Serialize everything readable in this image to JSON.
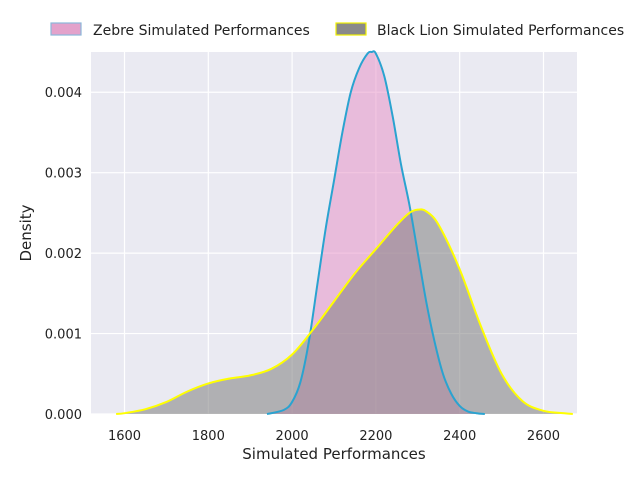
{
  "chart_data": {
    "type": "area",
    "title": "",
    "xlabel": "Simulated Performances",
    "ylabel": "Density",
    "xlim": [
      1520,
      2680
    ],
    "ylim": [
      0,
      0.0045
    ],
    "x_ticks": [
      1600,
      1800,
      2000,
      2200,
      2400,
      2600
    ],
    "x_tick_labels": [
      "1600",
      "1800",
      "2000",
      "2200",
      "2400",
      "2600"
    ],
    "y_ticks": [
      0,
      0.001,
      0.002,
      0.003,
      0.004
    ],
    "y_tick_labels": [
      "0.000",
      "0.001",
      "0.002",
      "0.003",
      "0.004"
    ],
    "grid": true,
    "legend_position": "top, above plot",
    "series": [
      {
        "name": "Zebre Simulated Performances",
        "fill_color": "#e68bc3",
        "line_color": "#2aa3d0",
        "x": [
          1940,
          1980,
          2000,
          2020,
          2040,
          2060,
          2080,
          2100,
          2120,
          2140,
          2160,
          2180,
          2190,
          2200,
          2220,
          2240,
          2260,
          2280,
          2300,
          2320,
          2340,
          2360,
          2380,
          2400,
          2420,
          2440,
          2460
        ],
        "y": [
          0.0,
          5e-05,
          0.00015,
          0.0004,
          0.0009,
          0.0016,
          0.0023,
          0.0029,
          0.0035,
          0.004,
          0.0043,
          0.00448,
          0.0045,
          0.00448,
          0.0042,
          0.0037,
          0.0031,
          0.0026,
          0.002,
          0.0014,
          0.0009,
          0.0005,
          0.00025,
          0.0001,
          3e-05,
          1e-05,
          0.0
        ]
      },
      {
        "name": "Black Lion Simulated Performances",
        "fill_color": "#808080",
        "line_color": "#ffff00",
        "x": [
          1580,
          1600,
          1650,
          1700,
          1750,
          1800,
          1850,
          1900,
          1950,
          2000,
          2050,
          2100,
          2150,
          2200,
          2250,
          2280,
          2300,
          2320,
          2350,
          2400,
          2450,
          2500,
          2550,
          2600,
          2650,
          2670
        ],
        "y": [
          0.0,
          1e-05,
          6e-05,
          0.00015,
          0.00028,
          0.00038,
          0.00044,
          0.00048,
          0.00056,
          0.00074,
          0.00105,
          0.0014,
          0.00175,
          0.00205,
          0.00235,
          0.0025,
          0.00254,
          0.00252,
          0.00235,
          0.0018,
          0.0011,
          0.0005,
          0.00016,
          4e-05,
          1e-05,
          0.0
        ]
      }
    ]
  }
}
